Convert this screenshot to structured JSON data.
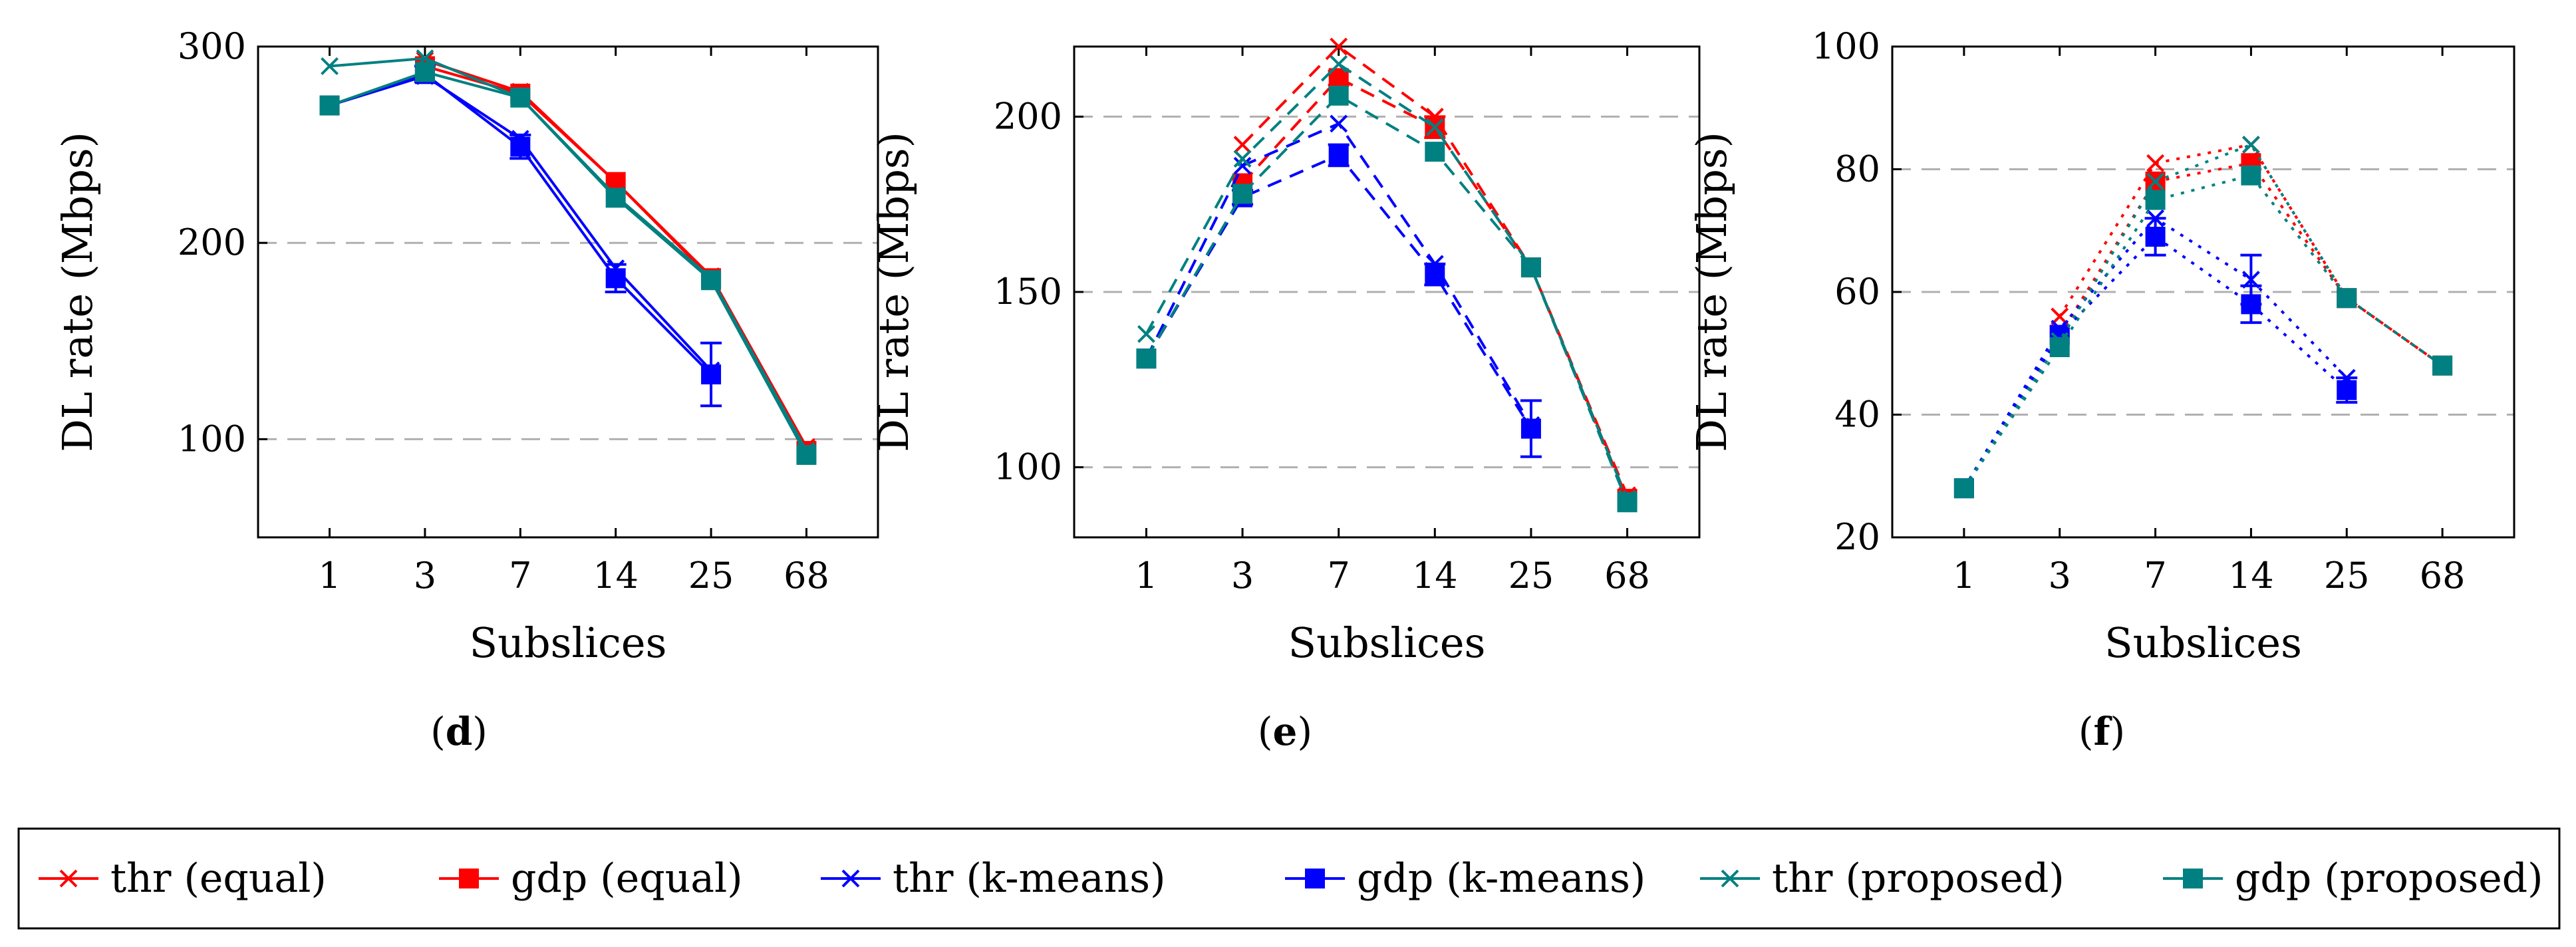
{
  "colors": {
    "equal": "#ff0000",
    "kmeans": "#0000ff",
    "proposed": "#008080",
    "grid": "#b0b0b0",
    "axis": "#000000"
  },
  "legend": {
    "items": [
      {
        "label": "thr (equal)",
        "color": "#ff0000",
        "marker": "cross"
      },
      {
        "label": "gdp (equal)",
        "color": "#ff0000",
        "marker": "square"
      },
      {
        "label": "thr (k-means)",
        "color": "#0000ff",
        "marker": "cross"
      },
      {
        "label": "gdp (k-means)",
        "color": "#0000ff",
        "marker": "square"
      },
      {
        "label": "thr (proposed)",
        "color": "#008080",
        "marker": "cross"
      },
      {
        "label": "gdp (proposed)",
        "color": "#008080",
        "marker": "square"
      }
    ]
  },
  "chart_data": [
    {
      "type": "line",
      "caption": "d",
      "line_style": "solid",
      "xlabel": "Subslices",
      "ylabel": "DL rate (Mbps)",
      "categories": [
        "1",
        "3",
        "7",
        "14",
        "25",
        "68"
      ],
      "ylim": [
        50,
        300
      ],
      "yticks": [
        100,
        200,
        300
      ],
      "grid_y": [
        100,
        200
      ],
      "series": [
        {
          "name": "thr (equal)",
          "color": "#ff0000",
          "marker": "cross",
          "values": [
            null,
            293,
            277,
            231,
            183,
            96
          ]
        },
        {
          "name": "gdp (equal)",
          "color": "#ff0000",
          "marker": "square",
          "values": [
            null,
            290,
            276,
            231,
            182,
            94
          ]
        },
        {
          "name": "thr (k-means)",
          "color": "#0000ff",
          "marker": "cross",
          "values": [
            270,
            285,
            253,
            187,
            135,
            null
          ]
        },
        {
          "name": "gdp (k-means)",
          "color": "#0000ff",
          "marker": "square",
          "values": [
            270,
            286,
            249,
            182,
            133,
            null
          ],
          "errors": [
            0,
            4,
            6,
            7,
            16,
            0
          ]
        },
        {
          "name": "thr (proposed)",
          "color": "#008080",
          "marker": "cross",
          "values": [
            290,
            294,
            274,
            224,
            182,
            94
          ]
        },
        {
          "name": "gdp (proposed)",
          "color": "#008080",
          "marker": "square",
          "values": [
            270,
            287,
            274,
            223,
            181,
            92
          ]
        }
      ]
    },
    {
      "type": "line",
      "caption": "e",
      "line_style": "dashed",
      "xlabel": "Subslices",
      "ylabel": "DL rate (Mbps)",
      "categories": [
        "1",
        "3",
        "7",
        "14",
        "25",
        "68"
      ],
      "ylim": [
        80,
        220
      ],
      "yticks": [
        100,
        150,
        200
      ],
      "grid_y": [
        100,
        150,
        200
      ],
      "series": [
        {
          "name": "thr (equal)",
          "color": "#ff0000",
          "marker": "cross",
          "values": [
            null,
            192,
            220,
            200,
            157,
            92
          ]
        },
        {
          "name": "gdp (equal)",
          "color": "#ff0000",
          "marker": "square",
          "values": [
            null,
            181,
            211,
            197,
            157,
            91
          ],
          "errors": [
            0,
            0,
            2,
            3,
            0,
            0
          ]
        },
        {
          "name": "thr (k-means)",
          "color": "#0000ff",
          "marker": "cross",
          "values": [
            131,
            186,
            198,
            158,
            112,
            null
          ]
        },
        {
          "name": "gdp (k-means)",
          "color": "#0000ff",
          "marker": "square",
          "values": [
            131,
            177,
            189,
            155,
            111,
            null
          ],
          "errors": [
            0,
            2,
            3,
            3,
            8,
            0
          ]
        },
        {
          "name": "thr (proposed)",
          "color": "#008080",
          "marker": "cross",
          "values": [
            138,
            188,
            215,
            197,
            157,
            91
          ]
        },
        {
          "name": "gdp (proposed)",
          "color": "#008080",
          "marker": "square",
          "values": [
            131,
            178,
            206,
            190,
            157,
            90
          ]
        }
      ]
    },
    {
      "type": "line",
      "caption": "f",
      "line_style": "dotted",
      "xlabel": "Subslices",
      "ylabel": "DL rate (Mbps)",
      "categories": [
        "1",
        "3",
        "7",
        "14",
        "25",
        "68"
      ],
      "ylim": [
        20,
        100
      ],
      "yticks": [
        20,
        40,
        60,
        80,
        100
      ],
      "grid_y": [
        40,
        60,
        80
      ],
      "series": [
        {
          "name": "thr (equal)",
          "color": "#ff0000",
          "marker": "cross",
          "values": [
            null,
            56,
            81,
            84,
            59,
            48
          ]
        },
        {
          "name": "gdp (equal)",
          "color": "#ff0000",
          "marker": "square",
          "values": [
            null,
            53,
            78,
            81,
            59,
            48
          ]
        },
        {
          "name": "thr (k-means)",
          "color": "#0000ff",
          "marker": "cross",
          "values": [
            28,
            54,
            72,
            62,
            46,
            null
          ],
          "errors": [
            0,
            0,
            0,
            4,
            0,
            0
          ]
        },
        {
          "name": "gdp (k-means)",
          "color": "#0000ff",
          "marker": "square",
          "values": [
            28,
            53,
            69,
            58,
            44,
            null
          ],
          "errors": [
            0,
            0,
            3,
            3,
            2,
            0
          ]
        },
        {
          "name": "thr (proposed)",
          "color": "#008080",
          "marker": "cross",
          "values": [
            28,
            52,
            78,
            84,
            59,
            48
          ]
        },
        {
          "name": "gdp (proposed)",
          "color": "#008080",
          "marker": "square",
          "values": [
            28,
            51,
            75,
            79,
            59,
            48
          ]
        }
      ]
    }
  ]
}
